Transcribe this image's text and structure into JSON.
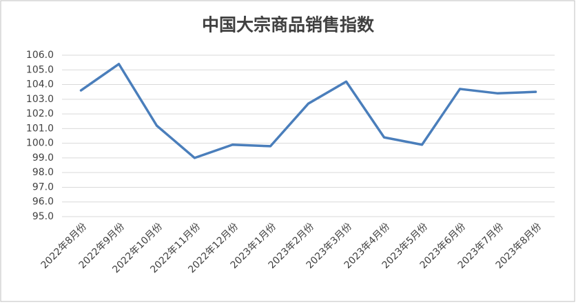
{
  "chart_data": {
    "type": "line",
    "title": "中国大宗商品销售指数",
    "categories": [
      "2022年8月份",
      "2022年9月份",
      "2022年10月份",
      "2022年11月份",
      "2022年12月份",
      "2023年1月份",
      "2023年2月份",
      "2023年3月份",
      "2023年4月份",
      "2023年5月份",
      "2023年6月份",
      "2023年7月份",
      "2023年8月份"
    ],
    "values": [
      103.6,
      105.4,
      101.2,
      99.0,
      99.9,
      99.8,
      102.7,
      104.2,
      100.4,
      99.9,
      103.7,
      103.4,
      103.5
    ],
    "color": "#4a7ebb",
    "ylim": [
      95,
      106
    ],
    "yticks": [
      {
        "value": 95,
        "label": "95.0"
      },
      {
        "value": 96,
        "label": "96.0"
      },
      {
        "value": 97,
        "label": "97.0"
      },
      {
        "value": 98,
        "label": "98.0"
      },
      {
        "value": 99,
        "label": "99.0"
      },
      {
        "value": 100,
        "label": "100.0"
      },
      {
        "value": 101,
        "label": "101.0"
      },
      {
        "value": 102,
        "label": "102.0"
      },
      {
        "value": 103,
        "label": "103.0"
      },
      {
        "value": 104,
        "label": "104.0"
      },
      {
        "value": 105,
        "label": "105.0"
      },
      {
        "value": 106,
        "label": "106.0"
      }
    ],
    "grid": true
  }
}
